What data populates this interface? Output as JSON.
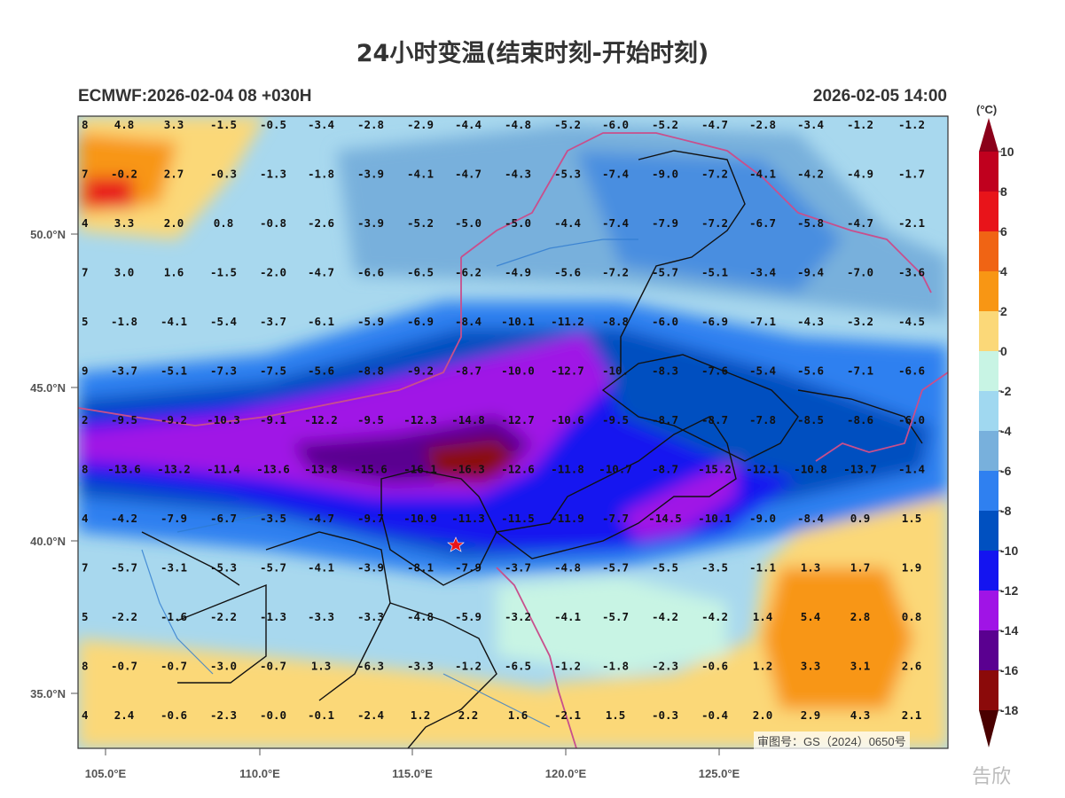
{
  "title": "24小时变温(结束时刻-开始时刻)",
  "subtitle_left": "ECMWF:2026-02-04 08 +030H",
  "subtitle_right": "2026-02-05 14:00",
  "unit": "(°C)",
  "approval_no": "审图号：GS（2024）0650号",
  "watermark": "告欣",
  "lat_labels": [
    "50.0°N",
    "45.0°N",
    "40.0°N",
    "35.0°N"
  ],
  "lon_labels": [
    "105.0°E",
    "110.0°E",
    "115.0°E",
    "120.0°E",
    "125.0°E"
  ],
  "colorbar": {
    "levels": [
      "10",
      "8",
      "6",
      "4",
      "2",
      "0",
      "-2",
      "-4",
      "-6",
      "-8",
      "-10",
      "-12",
      "-14",
      "-16",
      "-18"
    ],
    "colors": [
      "#8b001a",
      "#c0001e",
      "#e8141a",
      "#f06414",
      "#f89614",
      "#fbd878",
      "#c8f4e4",
      "#a0d8f0",
      "#78b0dc",
      "#2f80f0",
      "#0050c0",
      "#1414f0",
      "#a014e6",
      "#5a0090",
      "#8b0a0a",
      "#4a0000"
    ]
  },
  "station_marker": "red-star",
  "grid_values": [
    [
      "8",
      "4.8",
      "3.3",
      "-1.5",
      "-0.5",
      "-3.4",
      "-2.8",
      "-2.9",
      "-4.4",
      "-4.8",
      "-5.2",
      "-6.0",
      "-5.2",
      "-4.7",
      "-2.8",
      "-3.4",
      "-1.2",
      "-1.2"
    ],
    [
      "7",
      "-0.2",
      "2.7",
      "-0.3",
      "-1.3",
      "-1.8",
      "-3.9",
      "-4.1",
      "-4.7",
      "-4.3",
      "-5.3",
      "-7.4",
      "-9.0",
      "-7.2",
      "-4.1",
      "-4.2",
      "-4.9",
      "-1.7"
    ],
    [
      "4",
      "3.3",
      "2.0",
      "0.8",
      "-0.8",
      "-2.6",
      "-3.9",
      "-5.2",
      "-5.0",
      "-5.0",
      "-4.4",
      "-7.4",
      "-7.9",
      "-7.2",
      "-6.7",
      "-5.8",
      "-4.7",
      "-2.1"
    ],
    [
      "7",
      "3.0",
      "1.6",
      "-1.5",
      "-2.0",
      "-4.7",
      "-6.6",
      "-6.5",
      "-6.2",
      "-4.9",
      "-5.6",
      "-7.2",
      "-5.7",
      "-5.1",
      "-3.4",
      "-9.4",
      "-7.0",
      "-3.6"
    ],
    [
      "5",
      "-1.8",
      "-4.1",
      "-5.4",
      "-3.7",
      "-6.1",
      "-5.9",
      "-6.9",
      "-8.4",
      "-10.1",
      "-11.2",
      "-8.8",
      "-6.0",
      "-6.9",
      "-7.1",
      "-4.3",
      "-3.2",
      "-4.5"
    ],
    [
      "9",
      "-3.7",
      "-5.1",
      "-7.3",
      "-7.5",
      "-5.6",
      "-8.8",
      "-9.2",
      "-8.7",
      "-10.0",
      "-12.7",
      "-10.",
      "-8.3",
      "-7.6",
      "-5.4",
      "-5.6",
      "-7.1",
      "-6.6"
    ],
    [
      "2",
      "-9.5",
      "-9.2",
      "-10.3",
      "-9.1",
      "-12.2",
      "-9.5",
      "-12.3",
      "-14.8",
      "-12.7",
      "-10.6",
      "-9.5",
      "-8.7",
      "-8.7",
      "-7.8",
      "-8.5",
      "-8.6",
      "-6.0"
    ],
    [
      "8",
      "-13.6",
      "-13.2",
      "-11.4",
      "-13.6",
      "-13.8",
      "-15.6",
      "-16.1",
      "-16.3",
      "-12.6",
      "-11.8",
      "-10.7",
      "-8.7",
      "-15.2",
      "-12.1",
      "-10.8",
      "-13.7",
      "-1.4"
    ],
    [
      "4",
      "-4.2",
      "-7.9",
      "-6.7",
      "-3.5",
      "-4.7",
      "-9.7",
      "-10.9",
      "-11.3",
      "-11.5",
      "-11.9",
      "-7.7",
      "-14.5",
      "-10.1",
      "-9.0",
      "-8.4",
      "0.9",
      "1.5"
    ],
    [
      "7",
      "-5.7",
      "-3.1",
      "-5.3",
      "-5.7",
      "-4.1",
      "-3.9",
      "-8.1",
      "-7.9",
      "-3.7",
      "-4.8",
      "-5.7",
      "-5.5",
      "-3.5",
      "-1.1",
      "1.3",
      "1.7",
      "1.9"
    ],
    [
      "5",
      "-2.2",
      "-1.6",
      "-2.2",
      "-1.3",
      "-3.3",
      "-3.3",
      "-4.8",
      "-5.9",
      "-3.2",
      "-4.1",
      "-5.7",
      "-4.2",
      "-4.2",
      "1.4",
      "5.4",
      "2.8",
      "0.8"
    ],
    [
      "8",
      "-0.7",
      "-0.7",
      "-3.0",
      "-0.7",
      "1.3",
      "-6.3",
      "-3.3",
      "-1.2",
      "-6.5",
      "-1.2",
      "-1.8",
      "-2.3",
      "-0.6",
      "1.2",
      "3.3",
      "3.1",
      "2.6"
    ],
    [
      "4",
      "2.4",
      "-0.6",
      "-2.3",
      "-0.0",
      "-0.1",
      "-2.4",
      "1.2",
      "2.2",
      "1.6",
      "-2.1",
      "1.5",
      "-0.3",
      "-0.4",
      "2.0",
      "2.9",
      "4.3",
      "2.1"
    ]
  ]
}
